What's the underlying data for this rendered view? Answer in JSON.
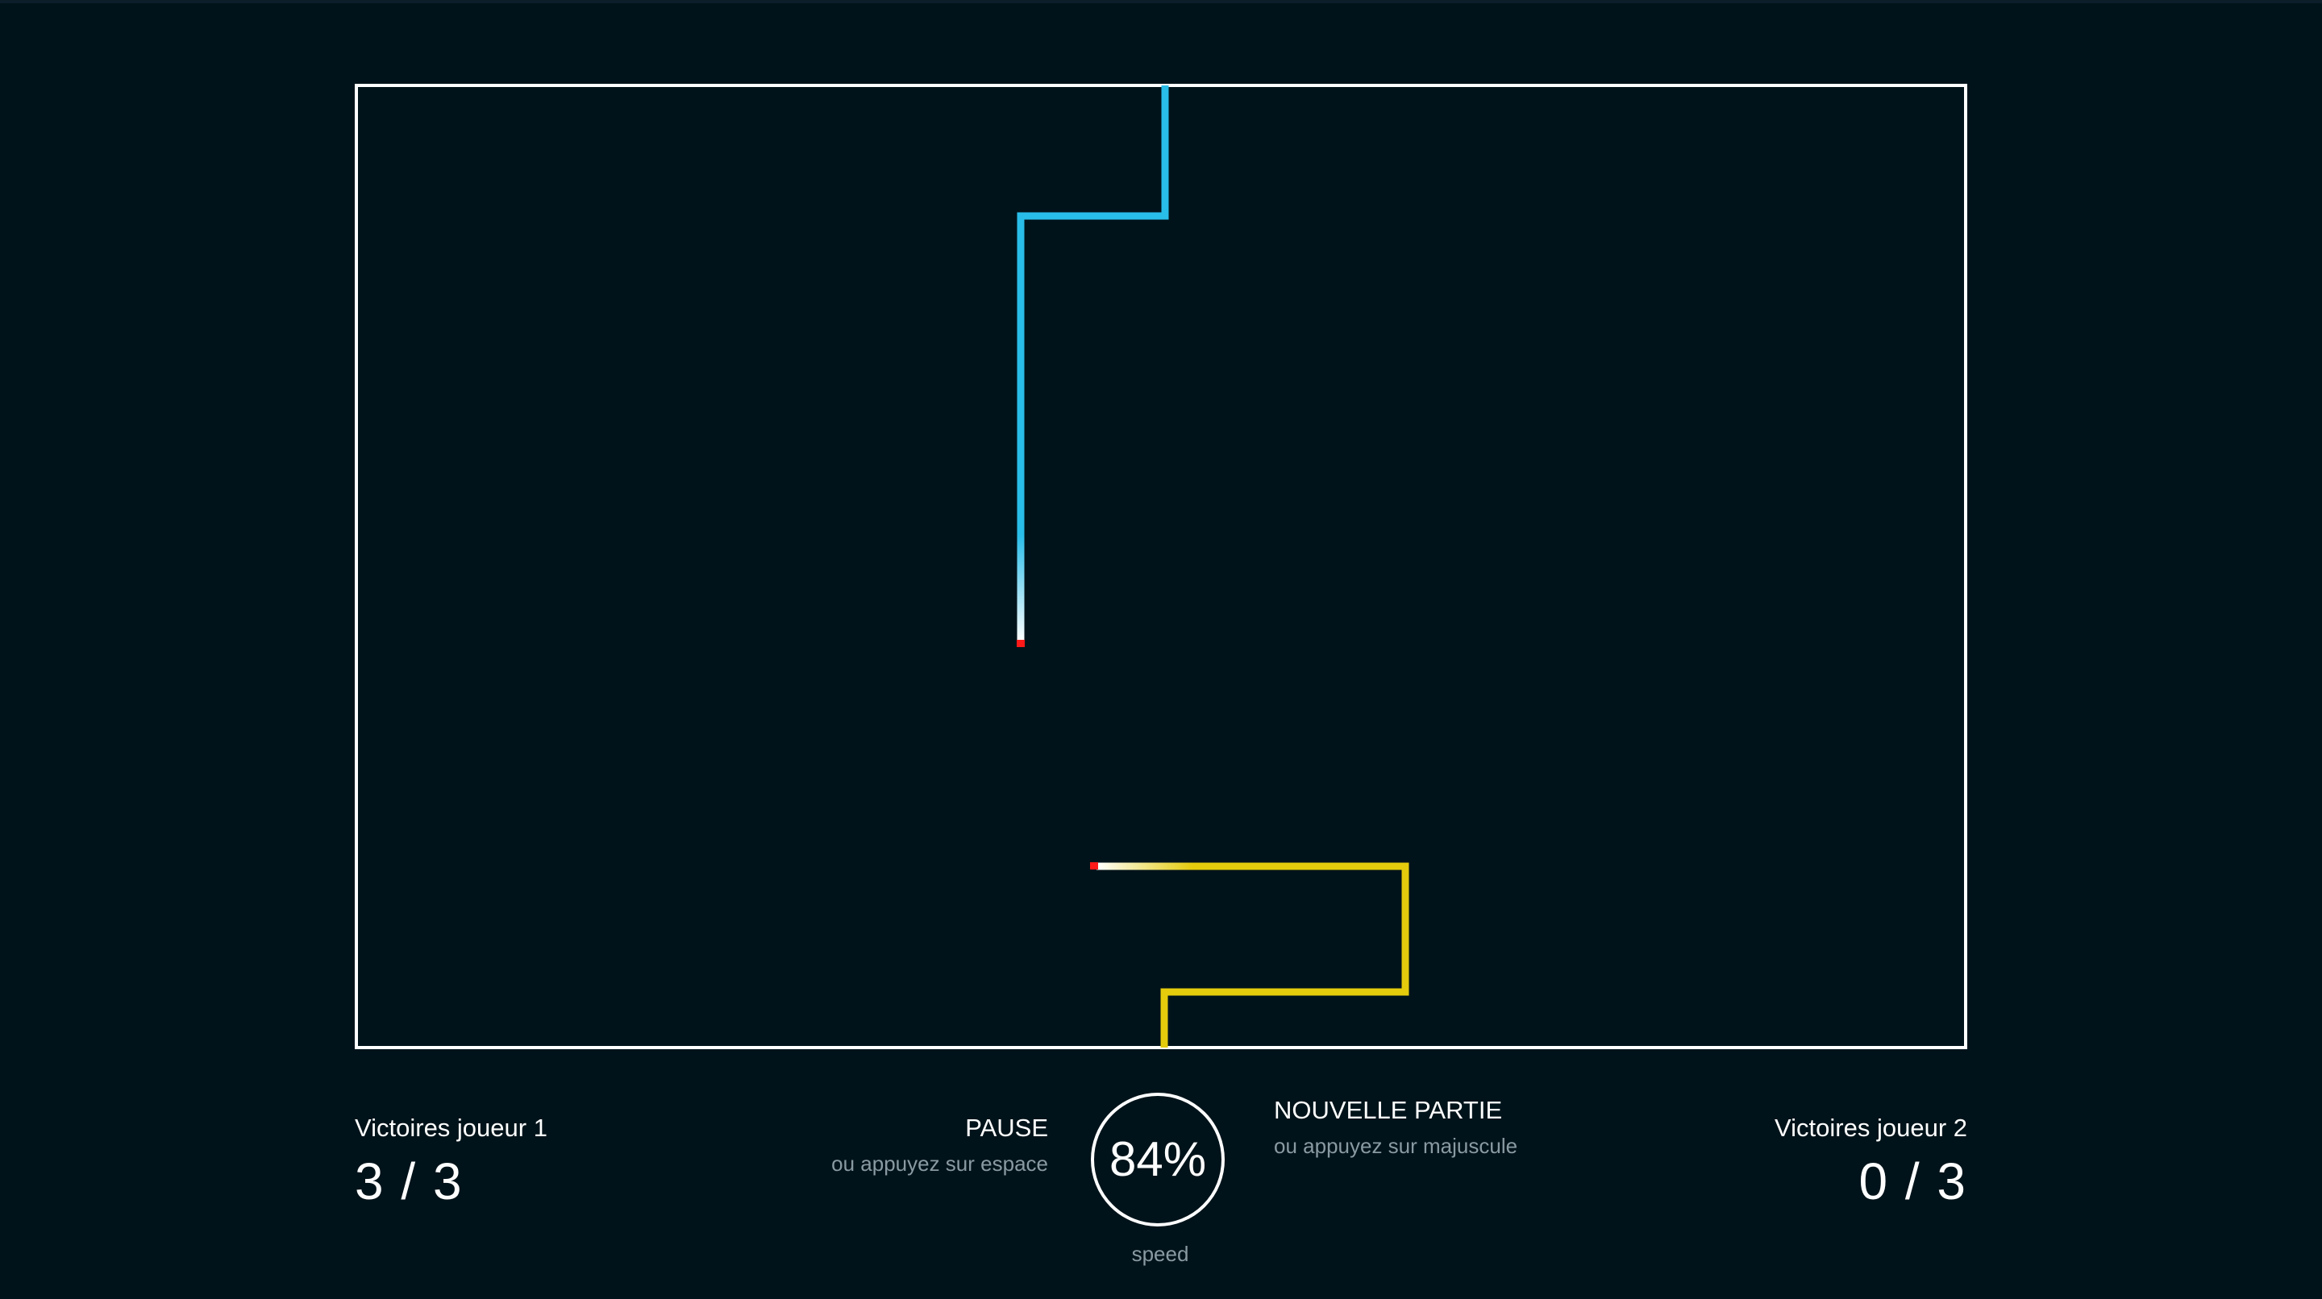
{
  "colors": {
    "background": "#01131a",
    "arena_border": "#ffffff",
    "player1_trail": "#29bde9",
    "player2_trail": "#e4cb0c",
    "trail_head": "#ff1a1a",
    "hint_text": "#8a9aa2"
  },
  "players": [
    {
      "label": "Victoires joueur 1",
      "wins": "3 / 3"
    },
    {
      "label": "Victoires joueur 2",
      "wins": "0 / 3"
    }
  ],
  "controls": {
    "pause": {
      "title": "PAUSE",
      "hint": "ou appuyez sur espace"
    },
    "new_game": {
      "title": "NOUVELLE PARTIE",
      "hint": "ou appuyez sur majuscule"
    }
  },
  "speed": {
    "value": "84%",
    "label": "speed"
  }
}
